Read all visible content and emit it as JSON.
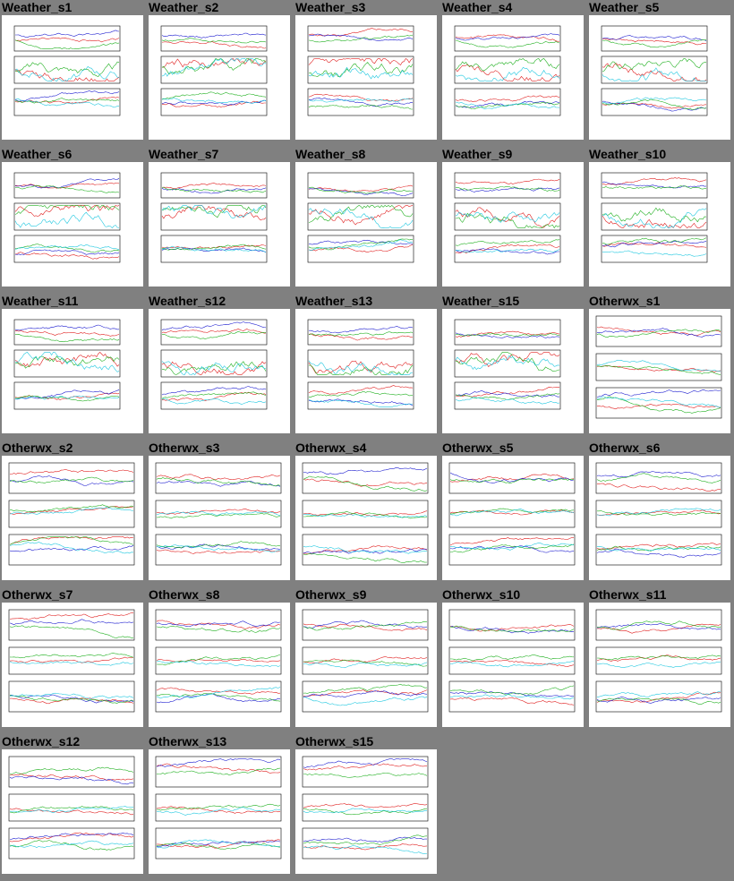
{
  "thumbnails": [
    {
      "title": "Weather_s1",
      "style": "weather"
    },
    {
      "title": "Weather_s2",
      "style": "weather"
    },
    {
      "title": "Weather_s3",
      "style": "weather"
    },
    {
      "title": "Weather_s4",
      "style": "weather"
    },
    {
      "title": "Weather_s5",
      "style": "weather"
    },
    {
      "title": "Weather_s6",
      "style": "weather"
    },
    {
      "title": "Weather_s7",
      "style": "weather"
    },
    {
      "title": "Weather_s8",
      "style": "weather"
    },
    {
      "title": "Weather_s9",
      "style": "weather"
    },
    {
      "title": "Weather_s10",
      "style": "weather"
    },
    {
      "title": "Weather_s11",
      "style": "weather"
    },
    {
      "title": "Weather_s12",
      "style": "weather"
    },
    {
      "title": "Weather_s13",
      "style": "weather"
    },
    {
      "title": "Weather_s15",
      "style": "weather"
    },
    {
      "title": "Otherwx_s1",
      "style": "otherwx"
    },
    {
      "title": "Otherwx_s2",
      "style": "otherwx"
    },
    {
      "title": "Otherwx_s3",
      "style": "otherwx"
    },
    {
      "title": "Otherwx_s4",
      "style": "otherwx"
    },
    {
      "title": "Otherwx_s5",
      "style": "otherwx"
    },
    {
      "title": "Otherwx_s6",
      "style": "otherwx"
    },
    {
      "title": "Otherwx_s7",
      "style": "otherwx"
    },
    {
      "title": "Otherwx_s8",
      "style": "otherwx"
    },
    {
      "title": "Otherwx_s9",
      "style": "otherwx"
    },
    {
      "title": "Otherwx_s10",
      "style": "otherwx"
    },
    {
      "title": "Otherwx_s11",
      "style": "otherwx"
    },
    {
      "title": "Otherwx_s12",
      "style": "otherwx"
    },
    {
      "title": "Otherwx_s13",
      "style": "otherwx"
    },
    {
      "title": "Otherwx_s15",
      "style": "otherwx"
    }
  ],
  "colors": {
    "page_background": "#808080",
    "thumbnail_background": "#ffffff",
    "trace_red": "#e02020",
    "trace_blue": "#2020d0",
    "trace_green": "#20b020",
    "trace_cyan": "#20c8e0",
    "trace_magenta": "#e020e0"
  }
}
